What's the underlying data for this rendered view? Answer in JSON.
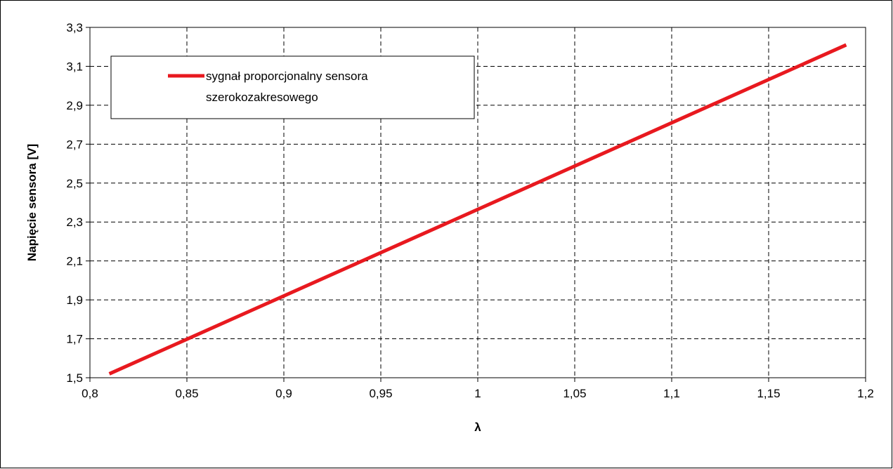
{
  "chart_data": {
    "type": "line",
    "xlabel": "λ",
    "ylabel": "Napięcie sensora [V]",
    "xlim": [
      0.8,
      1.2
    ],
    "ylim": [
      1.5,
      3.3
    ],
    "x_ticks": [
      "0,8",
      "0,85",
      "0,9",
      "0,95",
      "1",
      "1,05",
      "1,1",
      "1,15",
      "1,2"
    ],
    "y_ticks": [
      "1,5",
      "1,7",
      "1,9",
      "2,1",
      "2,3",
      "2,5",
      "2,7",
      "2,9",
      "3,1",
      "3,3"
    ],
    "grid": true,
    "legend_position": "top-left",
    "series": [
      {
        "name": "sygnał proporcjonalny sensora szerokozakresowego",
        "legend_lines": [
          "sygnał proporcjonalny sensora",
          "szerokozakresowego"
        ],
        "color": "#e8191f",
        "x": [
          0.81,
          1.19
        ],
        "y": [
          1.52,
          3.21
        ]
      }
    ]
  }
}
